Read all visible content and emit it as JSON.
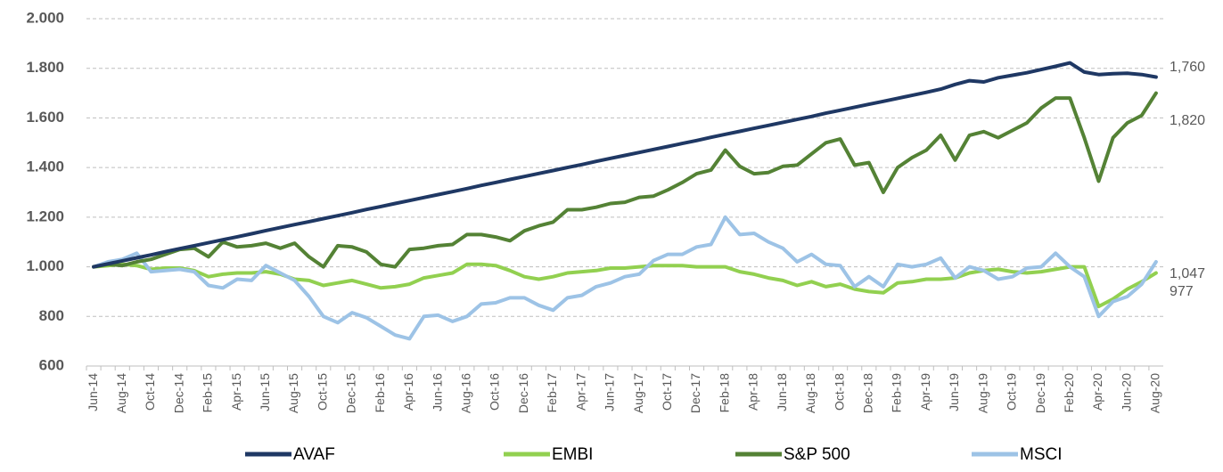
{
  "chart_data": {
    "type": "line",
    "categories": [
      "Jun-14",
      null,
      "Aug-14",
      null,
      "Oct-14",
      null,
      "Dec-14",
      null,
      "Feb-15",
      null,
      "Apr-15",
      null,
      "Jun-15",
      null,
      "Aug-15",
      null,
      "Oct-15",
      null,
      "Dec-15",
      null,
      "Feb-16",
      null,
      "Apr-16",
      null,
      "Jun-16",
      null,
      "Aug-16",
      null,
      "Oct-16",
      null,
      "Dec-16",
      null,
      "Feb-17",
      null,
      "Apr-17",
      null,
      "Jun-17",
      null,
      "Aug-17",
      null,
      "Oct-17",
      null,
      "Dec-17",
      null,
      "Feb-18",
      null,
      "Apr-18",
      null,
      "Jun-18",
      null,
      "Aug-18",
      null,
      "Oct-18",
      null,
      "Dec-18",
      null,
      "Feb-19",
      null,
      "Apr-19",
      null,
      "Jun-19",
      null,
      "Aug-19",
      null,
      "Oct-19",
      null,
      "Dec-19",
      null,
      "Feb-20",
      null,
      "Apr-20",
      null,
      "Jun-20",
      null,
      "Aug-20"
    ],
    "series": [
      {
        "name": "AVAF",
        "color": "#1f3864",
        "values": [
          1000,
          1012,
          1024,
          1036,
          1048,
          1061,
          1073,
          1085,
          1097,
          1109,
          1121,
          1133,
          1146,
          1158,
          1170,
          1182,
          1194,
          1206,
          1218,
          1231,
          1243,
          1255,
          1267,
          1279,
          1291,
          1303,
          1315,
          1328,
          1340,
          1352,
          1364,
          1376,
          1388,
          1400,
          1412,
          1425,
          1437,
          1449,
          1461,
          1473,
          1485,
          1497,
          1509,
          1522,
          1534,
          1546,
          1558,
          1570,
          1582,
          1594,
          1606,
          1619,
          1631,
          1643,
          1655,
          1667,
          1679,
          1691,
          1703,
          1716,
          1735,
          1750,
          1745,
          1762,
          1772,
          1782,
          1795,
          1808,
          1822,
          1785,
          1775,
          1778,
          1780,
          1775,
          1765
        ]
      },
      {
        "name": "EMBI",
        "color": "#92d050",
        "values": [
          1000,
          1005,
          1010,
          1005,
          990,
          995,
          995,
          985,
          960,
          970,
          975,
          975,
          980,
          970,
          950,
          945,
          925,
          935,
          945,
          930,
          915,
          920,
          930,
          955,
          965,
          975,
          1010,
          1010,
          1005,
          985,
          960,
          950,
          960,
          975,
          980,
          985,
          995,
          995,
          1000,
          1005,
          1005,
          1005,
          1000,
          1000,
          1000,
          980,
          970,
          955,
          945,
          925,
          940,
          920,
          930,
          910,
          900,
          895,
          935,
          940,
          950,
          950,
          955,
          975,
          985,
          990,
          980,
          975,
          980,
          990,
          1000,
          1000,
          840,
          870,
          910,
          940,
          975
        ]
      },
      {
        "name": "S&P 500",
        "color": "#548235",
        "values": [
          1000,
          1010,
          1005,
          1020,
          1030,
          1050,
          1070,
          1075,
          1040,
          1100,
          1080,
          1085,
          1095,
          1075,
          1095,
          1040,
          1000,
          1085,
          1080,
          1060,
          1010,
          1000,
          1070,
          1075,
          1085,
          1090,
          1130,
          1130,
          1120,
          1105,
          1145,
          1165,
          1180,
          1230,
          1230,
          1240,
          1255,
          1260,
          1280,
          1285,
          1310,
          1340,
          1375,
          1390,
          1470,
          1405,
          1375,
          1380,
          1405,
          1410,
          1455,
          1500,
          1515,
          1410,
          1420,
          1300,
          1400,
          1440,
          1470,
          1530,
          1430,
          1530,
          1545,
          1520,
          1550,
          1580,
          1640,
          1680,
          1680,
          1520,
          1345,
          1520,
          1580,
          1610,
          1700
        ]
      },
      {
        "name": "MSCI",
        "color": "#9dc3e6",
        "values": [
          1000,
          1020,
          1030,
          1055,
          980,
          985,
          990,
          980,
          925,
          915,
          950,
          945,
          1005,
          975,
          945,
          880,
          800,
          775,
          815,
          795,
          760,
          725,
          710,
          800,
          805,
          780,
          800,
          850,
          855,
          875,
          875,
          845,
          825,
          875,
          885,
          920,
          935,
          960,
          970,
          1025,
          1050,
          1050,
          1080,
          1090,
          1200,
          1130,
          1135,
          1100,
          1075,
          1020,
          1050,
          1010,
          1005,
          920,
          960,
          920,
          1010,
          1000,
          1010,
          1035,
          955,
          1000,
          985,
          950,
          960,
          995,
          1000,
          1055,
          1000,
          960,
          800,
          860,
          880,
          930,
          1020
        ]
      }
    ],
    "ylim": [
      600,
      2000
    ],
    "yticks": [
      600,
      800,
      {
        "value": 1000,
        "label": "1.000"
      },
      {
        "value": 1200,
        "label": "1.200"
      },
      {
        "value": 1400,
        "label": "1.400"
      },
      {
        "value": 1600,
        "label": "1.600"
      },
      {
        "value": 1800,
        "label": "1.800"
      },
      {
        "value": 2000,
        "label": "2.000"
      }
    ],
    "grid": true,
    "legend": "bottom",
    "annotations": [
      "1,760",
      "1,820",
      "1,047",
      "977"
    ]
  }
}
